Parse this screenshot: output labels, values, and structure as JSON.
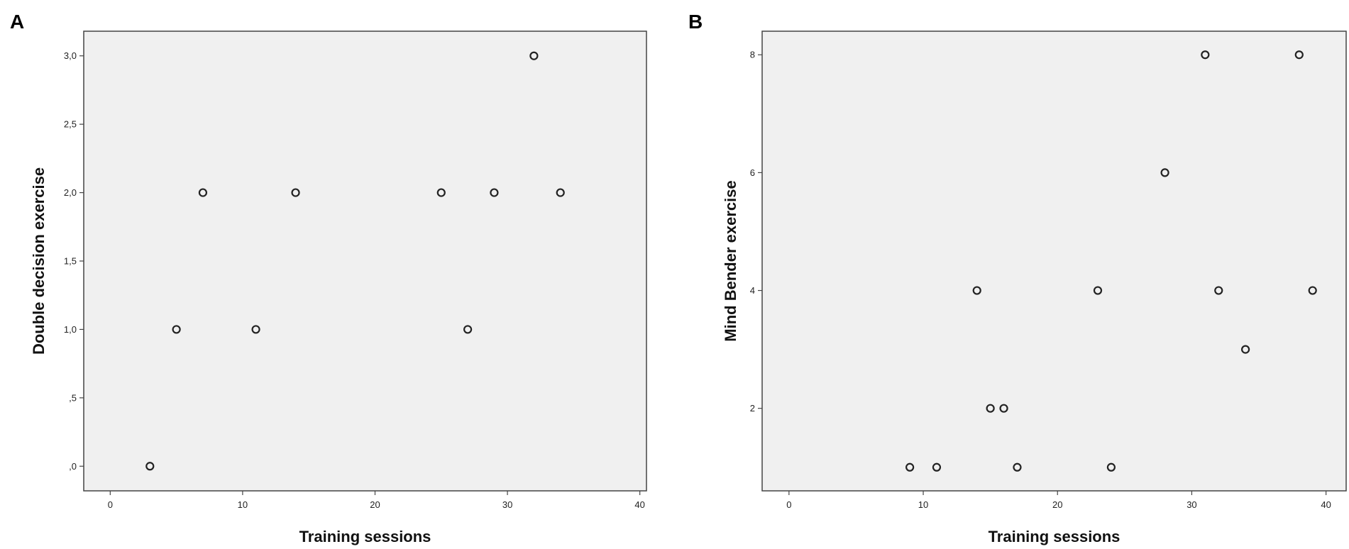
{
  "chart_data": [
    {
      "type": "scatter",
      "panel_label": "A",
      "xlabel": "Training sessions",
      "ylabel": "Double decision exercise",
      "xlim": [
        -2,
        40.5
      ],
      "ylim": [
        -0.18,
        3.18
      ],
      "xticks": [
        0,
        10,
        20,
        30,
        40
      ],
      "xtick_labels": [
        "0",
        "10",
        "20",
        "30",
        "40"
      ],
      "yticks": [
        0,
        0.5,
        1.0,
        1.5,
        2.0,
        2.5,
        3.0
      ],
      "ytick_labels": [
        ",0",
        ",5",
        "1,0",
        "1,5",
        "2,0",
        "2,5",
        "3,0"
      ],
      "points": [
        {
          "x": 3,
          "y": 0
        },
        {
          "x": 5,
          "y": 1
        },
        {
          "x": 7,
          "y": 2
        },
        {
          "x": 11,
          "y": 1
        },
        {
          "x": 14,
          "y": 2
        },
        {
          "x": 25,
          "y": 2
        },
        {
          "x": 27,
          "y": 1
        },
        {
          "x": 29,
          "y": 2
        },
        {
          "x": 32,
          "y": 3
        },
        {
          "x": 34,
          "y": 2
        }
      ]
    },
    {
      "type": "scatter",
      "panel_label": "B",
      "xlabel": "Training sessions",
      "ylabel": "Mind Bender exercise",
      "xlim": [
        -2,
        41.5
      ],
      "ylim": [
        0.6,
        8.4
      ],
      "xticks": [
        0,
        10,
        20,
        30,
        40
      ],
      "xtick_labels": [
        "0",
        "10",
        "20",
        "30",
        "40"
      ],
      "yticks": [
        2,
        4,
        6,
        8
      ],
      "ytick_labels": [
        "2",
        "4",
        "6",
        "8"
      ],
      "points": [
        {
          "x": 9,
          "y": 1
        },
        {
          "x": 11,
          "y": 1
        },
        {
          "x": 14,
          "y": 4
        },
        {
          "x": 15,
          "y": 2
        },
        {
          "x": 16,
          "y": 2
        },
        {
          "x": 17,
          "y": 1
        },
        {
          "x": 23,
          "y": 4
        },
        {
          "x": 24,
          "y": 1
        },
        {
          "x": 28,
          "y": 6
        },
        {
          "x": 31,
          "y": 8
        },
        {
          "x": 32,
          "y": 4
        },
        {
          "x": 34,
          "y": 3
        },
        {
          "x": 38,
          "y": 8
        },
        {
          "x": 39,
          "y": 4
        }
      ]
    }
  ]
}
